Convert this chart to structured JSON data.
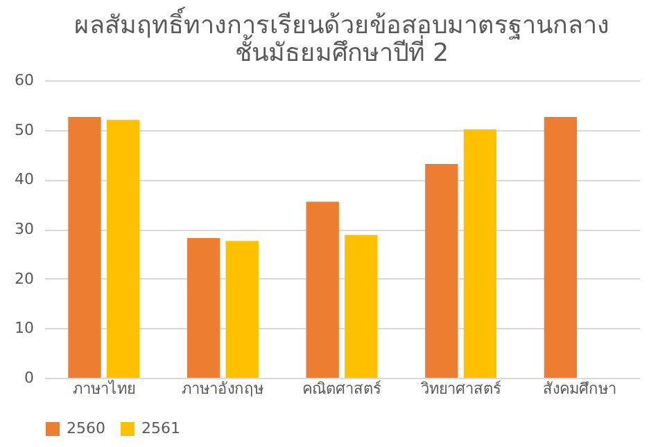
{
  "chart_data": {
    "type": "bar",
    "title": "ผลสัมฤทธิ์ทางการเรียนด้วยข้อสอบมาตรฐานกลาง\nชั้นมัธยมศึกษาปีที่ 2",
    "categories": [
      "ภาษาไทย",
      "ภาษาอังกฤษ",
      "คณิตศาสตร์",
      "วิทยาศาสตร์",
      "สังคมศึกษา"
    ],
    "series": [
      {
        "name": "2560",
        "color": "#ed7d31",
        "values": [
          52.6,
          28.2,
          35.5,
          43.1,
          52.6
        ]
      },
      {
        "name": "2561",
        "color": "#ffc000",
        "values": [
          52.0,
          27.6,
          28.8,
          50.1,
          null
        ]
      }
    ],
    "ylim": [
      0,
      60
    ],
    "yticks": [
      0,
      10,
      20,
      30,
      40,
      50,
      60
    ],
    "grid": "y",
    "legend": "bottom"
  }
}
